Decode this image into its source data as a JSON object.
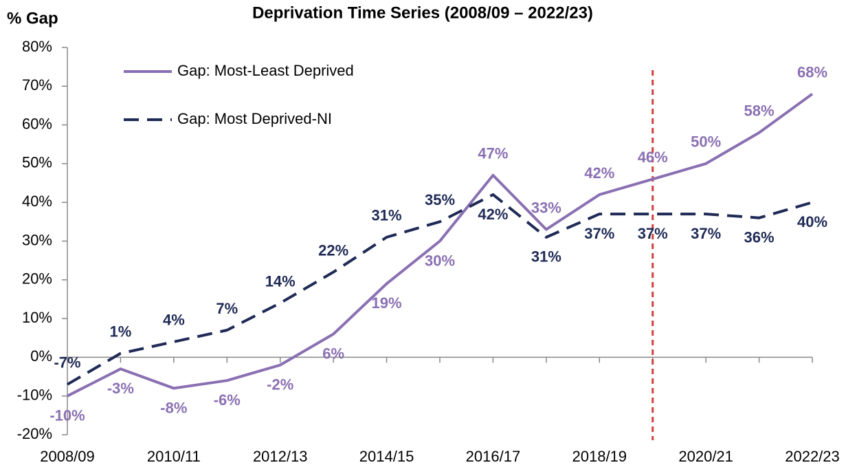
{
  "chart_data": {
    "type": "line",
    "title": "Deprivation Time Series (2008/09 – 2022/23)",
    "y_label": "% Gap",
    "categories": [
      "2008/09",
      null,
      "2010/11",
      null,
      "2012/13",
      null,
      "2014/15",
      null,
      "2016/17",
      null,
      "2018/19",
      null,
      "2020/21",
      null,
      "2022/23"
    ],
    "series": [
      {
        "name": "Gap: Most-Least Deprived",
        "color": "#8a70b2",
        "dash": false,
        "values": [
          -10,
          -3,
          -8,
          -6,
          -2,
          6,
          19,
          30,
          47,
          33,
          42,
          46,
          50,
          58,
          68
        ],
        "value_labels": [
          "-10%",
          "-3%",
          "-8%",
          "-6%",
          "-2%",
          "6%",
          "19%",
          "30%",
          "47%",
          "33%",
          "42%",
          "46%",
          "50%",
          "58%",
          "68%"
        ]
      },
      {
        "name": "Gap: Most Deprived-NI",
        "color": "#1f2a56",
        "dash": true,
        "values": [
          -7,
          1,
          4,
          7,
          14,
          22,
          31,
          35,
          42,
          31,
          37,
          37,
          37,
          36,
          40
        ],
        "value_labels": [
          "-7%",
          "1%",
          "4%",
          "7%",
          "14%",
          "22%",
          "31%",
          "35%",
          "42%",
          "31%",
          "37%",
          "37%",
          "37%",
          "36%",
          "40%"
        ]
      }
    ],
    "ylim": [
      -20,
      80
    ],
    "yticks": [
      {
        "value": -20,
        "label": "-20%"
      },
      {
        "value": -10,
        "label": "-10%"
      },
      {
        "value": 0,
        "label": "0%"
      },
      {
        "value": 10,
        "label": "10%"
      },
      {
        "value": 20,
        "label": "20%"
      },
      {
        "value": 30,
        "label": "30%"
      },
      {
        "value": 40,
        "label": "40%"
      },
      {
        "value": 50,
        "label": "50%"
      },
      {
        "value": 60,
        "label": "60%"
      },
      {
        "value": 70,
        "label": "70%"
      },
      {
        "value": 80,
        "label": "80%"
      }
    ],
    "grid": false,
    "legend": "top-left"
  }
}
